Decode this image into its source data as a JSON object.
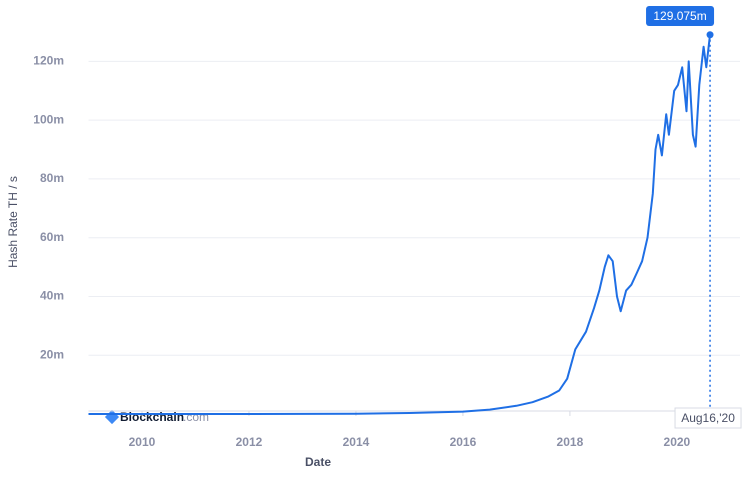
{
  "chart_data": {
    "type": "line",
    "x_label": "Date",
    "y_label": "Hash Rate TH / s",
    "watermark": [
      "Blockchain",
      ".com"
    ],
    "xlim": [
      2009,
      2020.75
    ],
    "xticks": [
      2010,
      2012,
      2014,
      2016,
      2018,
      2020
    ],
    "ylim": [
      0,
      130
    ],
    "yticks": [
      {
        "value": 20,
        "label": "20m"
      },
      {
        "value": 40,
        "label": "40m"
      },
      {
        "value": 60,
        "label": "60m"
      },
      {
        "value": 80,
        "label": "80m"
      },
      {
        "value": 100,
        "label": "100m"
      },
      {
        "value": 120,
        "label": "120m"
      }
    ],
    "grid": true,
    "series": [
      {
        "name": "Hash Rate",
        "color": "#1f6fe5",
        "x": [
          2009.0,
          2010.0,
          2011.0,
          2012.0,
          2013.0,
          2014.0,
          2015.0,
          2016.0,
          2016.5,
          2017.0,
          2017.3,
          2017.6,
          2017.8,
          2017.95,
          2018.1,
          2018.3,
          2018.45,
          2018.55,
          2018.65,
          2018.72,
          2018.8,
          2018.88,
          2018.95,
          2019.05,
          2019.15,
          2019.25,
          2019.35,
          2019.45,
          2019.55,
          2019.6,
          2019.65,
          2019.72,
          2019.8,
          2019.85,
          2019.95,
          2020.02,
          2020.1,
          2020.18,
          2020.22,
          2020.3,
          2020.35,
          2020.42,
          2020.5,
          2020.55,
          2020.62
        ],
        "values": [
          0,
          0,
          0.01,
          0.01,
          0.02,
          0.1,
          0.35,
          0.8,
          1.5,
          2.8,
          4,
          6,
          8,
          12,
          22,
          28,
          36,
          42,
          50,
          54,
          52,
          40,
          35,
          42,
          44,
          48,
          52,
          60,
          75,
          90,
          95,
          88,
          102,
          95,
          110,
          112,
          118,
          103,
          120,
          95,
          91,
          112,
          125,
          118,
          129.075
        ]
      }
    ],
    "highlight": {
      "x": 2020.62,
      "value": 129.075,
      "value_label": "129.075m",
      "x_label": "Aug16,'20"
    }
  }
}
